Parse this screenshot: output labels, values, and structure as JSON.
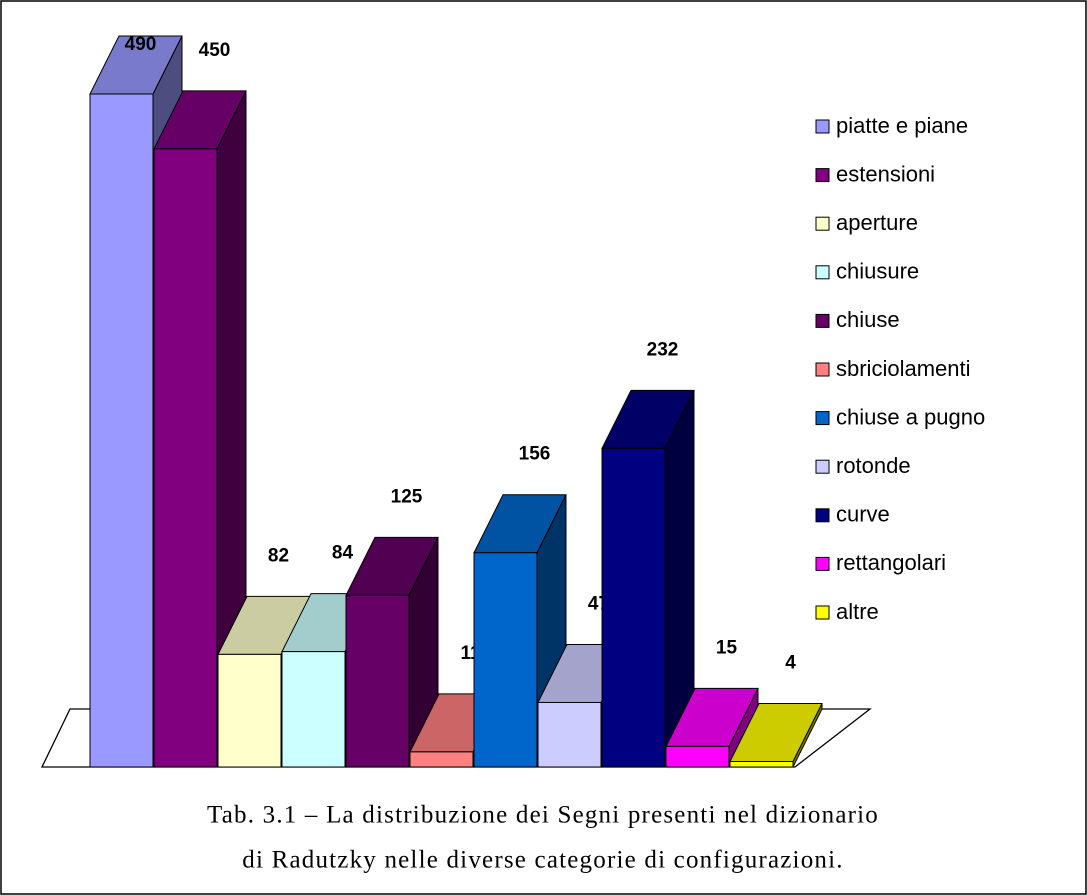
{
  "chart_data": {
    "type": "bar",
    "series": [
      {
        "name": "piatte e piane",
        "color": "#9999ff",
        "values": [
          490
        ]
      },
      {
        "name": "estensioni",
        "color": "#800080",
        "values": [
          450
        ]
      },
      {
        "name": "aperture",
        "color": "#ffffcc",
        "values": [
          82
        ]
      },
      {
        "name": "chiusure",
        "color": "#ccffff",
        "values": [
          84
        ]
      },
      {
        "name": "chiuse",
        "color": "#660066",
        "values": [
          125
        ]
      },
      {
        "name": "sbriciolamenti",
        "color": "#ff8080",
        "values": [
          11
        ]
      },
      {
        "name": "chiuse a pugno",
        "color": "#0066cc",
        "values": [
          156
        ]
      },
      {
        "name": "rotonde",
        "color": "#ccccff",
        "values": [
          47
        ]
      },
      {
        "name": "curve",
        "color": "#000080",
        "values": [
          232
        ]
      },
      {
        "name": "rettangolari",
        "color": "#ff00ff",
        "values": [
          15
        ]
      },
      {
        "name": "altre",
        "color": "#ffff00",
        "values": [
          4
        ]
      }
    ],
    "caption": [
      "Tab. 3.1 – La distribuzione dei Segni presenti nel dizionario",
      "di Radutzky nelle diverse categorie di configurazioni."
    ]
  }
}
